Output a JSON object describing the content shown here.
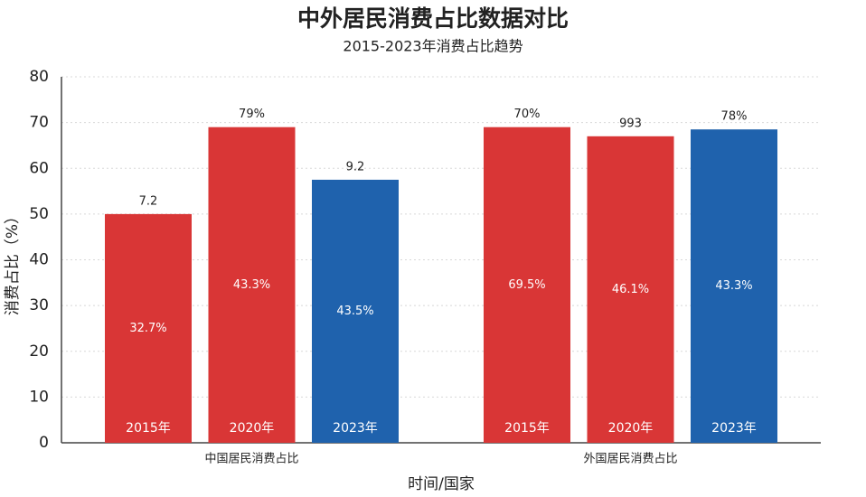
{
  "chart_data": {
    "type": "bar",
    "title": "中外居民消费占比数据对比",
    "subtitle": "2015-2023年消费占比趋势",
    "y_label": "消费占比（%）",
    "x_label": "时间/国家",
    "ylim": [
      0,
      80
    ],
    "yticks": [
      0,
      10,
      20,
      30,
      40,
      50,
      60,
      70,
      80
    ],
    "grid": true,
    "groups": [
      {
        "label": "中国居民消费占比",
        "categories": [
          "2015年",
          "2020年",
          "2023年"
        ],
        "values": [
          50,
          69,
          57.5
        ],
        "colors": [
          "#d93636",
          "#d93636",
          "#1f62ad"
        ],
        "top_labels": [
          "7.2",
          "79%",
          "9.2"
        ],
        "inner_labels": [
          "32.7%",
          "43.3%",
          "43.5%"
        ]
      },
      {
        "label": "外国居民消费占比",
        "categories": [
          "2015年",
          "2020年",
          "2023年"
        ],
        "values": [
          69,
          67,
          68.5
        ],
        "colors": [
          "#d93636",
          "#d93636",
          "#1f62ad"
        ],
        "top_labels": [
          "70%",
          "993",
          "78%"
        ],
        "inner_labels": [
          "69.5%",
          "46.1%",
          "43.3%"
        ]
      }
    ]
  }
}
